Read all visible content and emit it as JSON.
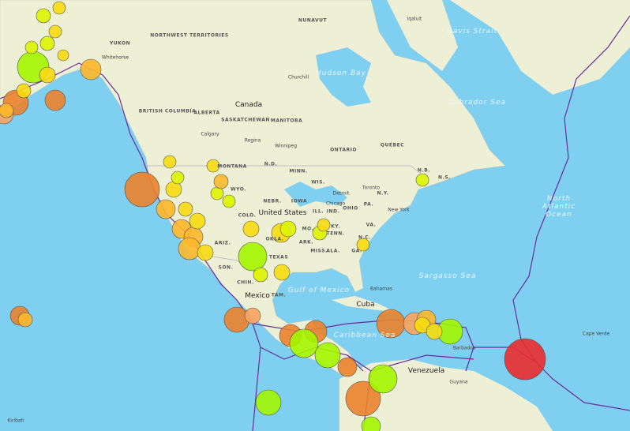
{
  "labels": [
    "Canada",
    "United States",
    "Mexico",
    "Cuba",
    "Venezuela",
    "Hudson Bay",
    "Labrador Sea",
    "Davis Strait",
    "North Atlantic Ocean",
    "Sargasso Sea",
    "Gulf of Mexico",
    "Caribbean Sea",
    "YUKON",
    "NORTHWEST TERRITORIES",
    "NUNAVUT",
    "BRITISH COLUMBIA",
    "ALBERTA",
    "SASKATCHEWAN",
    "MANITOBA",
    "ONTARIO",
    "QUÉBEC",
    "MONTANA",
    "N.D.",
    "MINN.",
    "WIS.",
    "WYO.",
    "NEBR.",
    "IOWA",
    "COLO.",
    "ILL.",
    "IND.",
    "OHIO",
    "PA.",
    "N.Y.",
    "MO.",
    "KY.",
    "VA.",
    "TENN.",
    "N.C.",
    "ARIZ.",
    "OKLA.",
    "ARK.",
    "MISS.",
    "ALA.",
    "GA.",
    "TEXAS",
    "SON.",
    "CHIH.",
    "TAM.",
    "N.B.",
    "N.S.",
    "Whitehorse",
    "Calgary",
    "Regina",
    "Winnipeg",
    "Toronto",
    "Chicago",
    "Detroit",
    "New York",
    "Bahamas",
    "Barbados",
    "Guyana",
    "Cape Verde",
    "Kiribati",
    "Iqaluit",
    "Churchill"
  ]
}
